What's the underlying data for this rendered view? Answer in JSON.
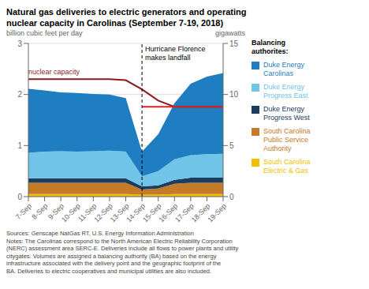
{
  "chart_data": {
    "type": "area",
    "stacked": true,
    "grid": true,
    "title": "Natural gas deliveries to electric generators and operating\nnuclear capacity in Carolinas (September 7-19, 2018)",
    "ylabel": "billion cubic feet per day",
    "y2label": "gigawatts",
    "ylim": [
      0,
      3
    ],
    "yticks": [
      0,
      1,
      2,
      3
    ],
    "y2lim": [
      0,
      15
    ],
    "y2ticks": [
      0,
      5,
      10,
      15
    ],
    "categories": [
      "7-Sep",
      "8-Sep",
      "9-Sep",
      "10-Sep",
      "11-Sep",
      "12-Sep",
      "13-Sep",
      "14-Sep",
      "15-Sep",
      "16-Sep",
      "17-Sep",
      "18-Sep",
      "19-Sep"
    ],
    "legend_title": "Balancing\nauthorites:",
    "series": [
      {
        "name": "South Carolina\nElectric & Gas",
        "type": "area",
        "color": "#F0C000",
        "values": [
          0.05,
          0.05,
          0.05,
          0.05,
          0.05,
          0.05,
          0.05,
          0.04,
          0.04,
          0.05,
          0.05,
          0.05,
          0.05
        ]
      },
      {
        "name": "South Carolina\nPublic Service\nAuthority",
        "type": "area",
        "color": "#C47A27",
        "values": [
          0.22,
          0.22,
          0.22,
          0.22,
          0.22,
          0.22,
          0.22,
          0.1,
          0.12,
          0.2,
          0.22,
          0.22,
          0.22
        ]
      },
      {
        "name": "Duke Energy\nProgress West",
        "type": "area",
        "color": "#1C3E5E",
        "values": [
          0.09,
          0.09,
          0.09,
          0.09,
          0.09,
          0.09,
          0.09,
          0.06,
          0.06,
          0.08,
          0.1,
          0.1,
          0.1
        ]
      },
      {
        "name": "Duke Energy\nProgress East",
        "type": "area",
        "color": "#70C4E8",
        "values": [
          0.5,
          0.52,
          0.53,
          0.52,
          0.53,
          0.54,
          0.52,
          0.2,
          0.28,
          0.4,
          0.44,
          0.46,
          0.47
        ]
      },
      {
        "name": "Duke Energy\nCarolinas",
        "type": "area",
        "color": "#1F7EC2",
        "values": [
          1.25,
          1.2,
          1.15,
          1.15,
          1.12,
          1.1,
          1.05,
          0.48,
          0.72,
          1.1,
          1.4,
          1.52,
          1.58
        ]
      },
      {
        "name": "nuclear capacity",
        "type": "line",
        "color": "#8B1A1A",
        "values": [
          2.3,
          2.3,
          2.3,
          2.3,
          2.3,
          2.3,
          2.28,
          2.1,
          1.88,
          1.76,
          1.76,
          1.76,
          1.76
        ]
      },
      {
        "type": "line",
        "color": "#DD2222",
        "values": [
          null,
          null,
          null,
          null,
          null,
          null,
          null,
          1.76,
          1.76,
          1.76,
          1.76,
          1.76,
          1.76
        ]
      }
    ],
    "annotations": [
      {
        "text": "Hurricane Florence\nmakes landfall",
        "x": "14-Sep",
        "line_style": "dashed"
      }
    ],
    "note": "Sources: Genscape NatGas RT, U.S. Energy Information Administration\nNotes:  The Carolinas correspond to the North American Electric Reliability Corporation\n(NERC) assessment area SERC-E.  Deliveries include all flows to power plants and utility\ncitygates.  Volumes are assigned a balancing authority (BA) based on the energy\ninfrastructure associated with the delivery point and the geographic footprint of the\nBA.  Deliveries to electric cooperatives and municipal utilities are also included."
  }
}
